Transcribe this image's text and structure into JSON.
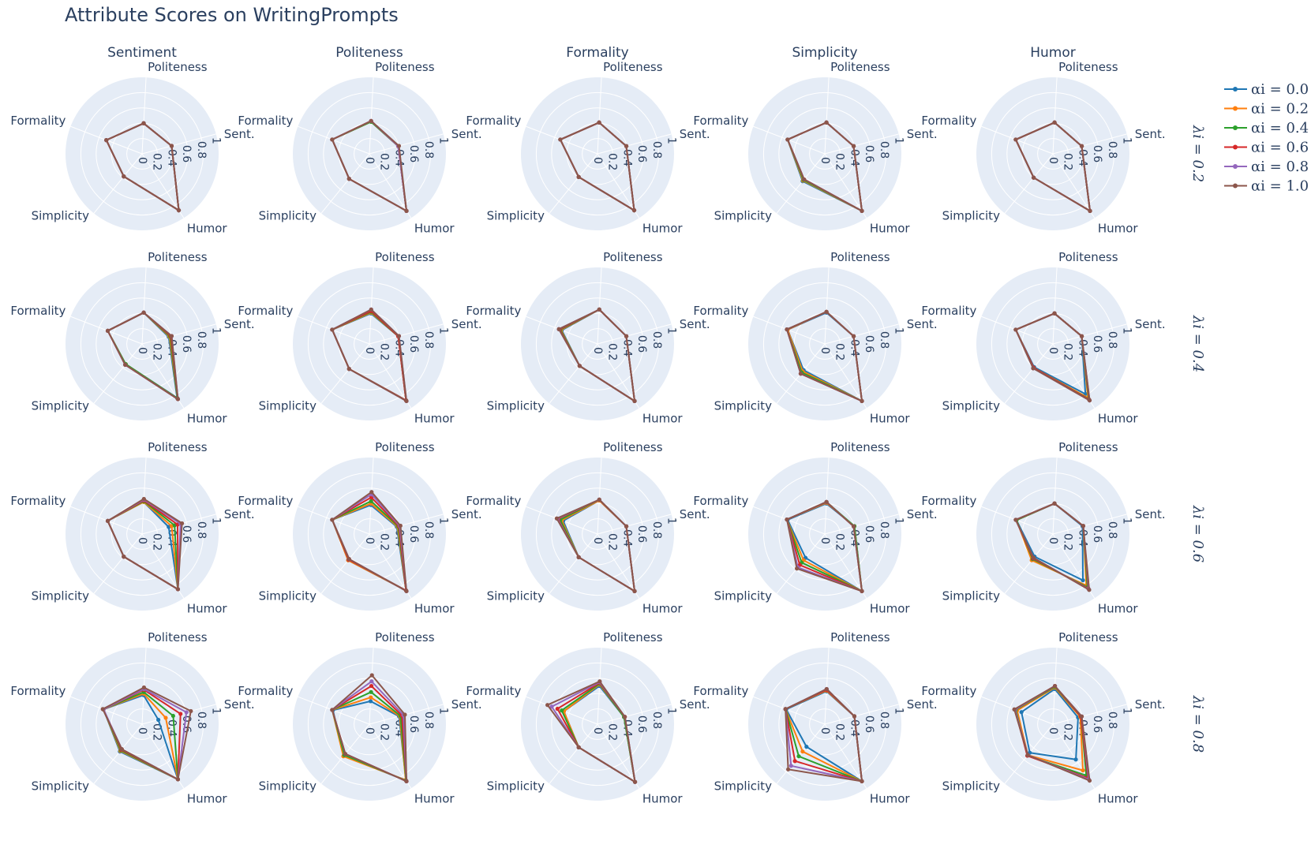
{
  "title": "Attribute Scores on WritingPrompts",
  "colors": {
    "background": "#ffffff",
    "polar_bg": "#e5ecf6",
    "grid": "#ffffff",
    "text": "#2a3f5f"
  },
  "chart_data": {
    "type": "radar",
    "axes": [
      "Sent.",
      "Politeness",
      "Formality",
      "Simplicity",
      "Humor"
    ],
    "radial_range": [
      0,
      1
    ],
    "radial_ticks": [
      "0",
      "0.2",
      "0.4",
      "0.6",
      "0.8",
      "1"
    ],
    "col_titles": [
      "Sentiment",
      "Politeness",
      "Formality",
      "Simplicity",
      "Humor"
    ],
    "row_labels": [
      "λi = 0.2",
      "λi = 0.4",
      "λi = 0.6",
      "λi = 0.8"
    ],
    "legend": [
      {
        "name": "αi = 0.0",
        "color": "#1f77b4"
      },
      {
        "name": "αi = 0.2",
        "color": "#ff7f0e"
      },
      {
        "name": "αi = 0.4",
        "color": "#2ca02c"
      },
      {
        "name": "αi = 0.6",
        "color": "#d62728"
      },
      {
        "name": "αi = 0.8",
        "color": "#9467bd"
      },
      {
        "name": "αi = 1.0",
        "color": "#8c564b"
      }
    ],
    "panels": [
      [
        {
          "series": [
            [
              0.4,
              0.4,
              0.5,
              0.38,
              0.88
            ],
            [
              0.4,
              0.4,
              0.5,
              0.38,
              0.88
            ],
            [
              0.4,
              0.4,
              0.5,
              0.38,
              0.88
            ],
            [
              0.4,
              0.4,
              0.5,
              0.38,
              0.88
            ],
            [
              0.4,
              0.4,
              0.5,
              0.38,
              0.88
            ],
            [
              0.4,
              0.4,
              0.5,
              0.38,
              0.88
            ]
          ]
        },
        {
          "series": [
            [
              0.39,
              0.42,
              0.52,
              0.42,
              0.89
            ],
            [
              0.39,
              0.42,
              0.52,
              0.42,
              0.89
            ],
            [
              0.39,
              0.42,
              0.52,
              0.42,
              0.89
            ],
            [
              0.39,
              0.43,
              0.52,
              0.42,
              0.89
            ],
            [
              0.39,
              0.43,
              0.52,
              0.42,
              0.89
            ],
            [
              0.4,
              0.43,
              0.52,
              0.42,
              0.89
            ]
          ]
        },
        {
          "series": [
            [
              0.39,
              0.41,
              0.52,
              0.39,
              0.88
            ],
            [
              0.39,
              0.41,
              0.52,
              0.39,
              0.88
            ],
            [
              0.39,
              0.41,
              0.52,
              0.39,
              0.88
            ],
            [
              0.39,
              0.41,
              0.52,
              0.39,
              0.88
            ],
            [
              0.39,
              0.41,
              0.52,
              0.39,
              0.88
            ],
            [
              0.39,
              0.41,
              0.52,
              0.39,
              0.88
            ]
          ]
        },
        {
          "series": [
            [
              0.39,
              0.41,
              0.52,
              0.46,
              0.89
            ],
            [
              0.39,
              0.41,
              0.52,
              0.45,
              0.89
            ],
            [
              0.39,
              0.41,
              0.52,
              0.44,
              0.89
            ],
            [
              0.39,
              0.41,
              0.52,
              0.43,
              0.89
            ],
            [
              0.39,
              0.41,
              0.52,
              0.43,
              0.89
            ],
            [
              0.39,
              0.41,
              0.52,
              0.43,
              0.89
            ]
          ]
        },
        {
          "series": [
            [
              0.39,
              0.41,
              0.52,
              0.4,
              0.89
            ],
            [
              0.39,
              0.41,
              0.52,
              0.4,
              0.89
            ],
            [
              0.39,
              0.41,
              0.52,
              0.4,
              0.89
            ],
            [
              0.39,
              0.41,
              0.52,
              0.4,
              0.89
            ],
            [
              0.39,
              0.41,
              0.52,
              0.4,
              0.89
            ],
            [
              0.39,
              0.41,
              0.52,
              0.4,
              0.89
            ]
          ]
        }
      ],
      [
        {
          "series": [
            [
              0.36,
              0.41,
              0.48,
              0.34,
              0.84
            ],
            [
              0.37,
              0.41,
              0.48,
              0.34,
              0.85
            ],
            [
              0.38,
              0.41,
              0.48,
              0.34,
              0.85
            ],
            [
              0.39,
              0.41,
              0.48,
              0.35,
              0.86
            ],
            [
              0.4,
              0.41,
              0.48,
              0.35,
              0.86
            ],
            [
              0.4,
              0.41,
              0.48,
              0.35,
              0.86
            ]
          ]
        },
        {
          "series": [
            [
              0.39,
              0.4,
              0.52,
              0.42,
              0.88
            ],
            [
              0.39,
              0.41,
              0.52,
              0.42,
              0.88
            ],
            [
              0.39,
              0.42,
              0.52,
              0.42,
              0.88
            ],
            [
              0.39,
              0.43,
              0.52,
              0.42,
              0.88
            ],
            [
              0.4,
              0.45,
              0.52,
              0.42,
              0.89
            ],
            [
              0.4,
              0.45,
              0.52,
              0.42,
              0.89
            ]
          ]
        },
        {
          "series": [
            [
              0.39,
              0.45,
              0.5,
              0.37,
              0.89
            ],
            [
              0.39,
              0.45,
              0.51,
              0.37,
              0.89
            ],
            [
              0.39,
              0.45,
              0.52,
              0.37,
              0.89
            ],
            [
              0.39,
              0.45,
              0.53,
              0.37,
              0.89
            ],
            [
              0.39,
              0.45,
              0.54,
              0.37,
              0.89
            ],
            [
              0.39,
              0.45,
              0.54,
              0.37,
              0.89
            ]
          ]
        },
        {
          "series": [
            [
              0.39,
              0.41,
              0.52,
              0.44,
              0.89
            ],
            [
              0.39,
              0.42,
              0.52,
              0.46,
              0.89
            ],
            [
              0.39,
              0.42,
              0.53,
              0.48,
              0.89
            ],
            [
              0.39,
              0.42,
              0.53,
              0.5,
              0.89
            ],
            [
              0.39,
              0.42,
              0.53,
              0.5,
              0.89
            ],
            [
              0.39,
              0.42,
              0.53,
              0.5,
              0.89
            ]
          ]
        },
        {
          "series": [
            [
              0.39,
              0.4,
              0.52,
              0.39,
              0.78
            ],
            [
              0.39,
              0.4,
              0.52,
              0.4,
              0.84
            ],
            [
              0.39,
              0.4,
              0.52,
              0.4,
              0.86
            ],
            [
              0.39,
              0.4,
              0.52,
              0.4,
              0.87
            ],
            [
              0.39,
              0.4,
              0.52,
              0.41,
              0.88
            ],
            [
              0.39,
              0.4,
              0.52,
              0.41,
              0.88
            ]
          ]
        }
      ],
      [
        {
          "series": [
            [
              0.36,
              0.42,
              0.48,
              0.38,
              0.86
            ],
            [
              0.4,
              0.42,
              0.48,
              0.38,
              0.86
            ],
            [
              0.44,
              0.43,
              0.48,
              0.38,
              0.86
            ],
            [
              0.48,
              0.44,
              0.48,
              0.38,
              0.86
            ],
            [
              0.52,
              0.45,
              0.48,
              0.38,
              0.86
            ],
            [
              0.54,
              0.46,
              0.48,
              0.38,
              0.86
            ]
          ]
        },
        {
          "series": [
            [
              0.37,
              0.38,
              0.52,
              0.44,
              0.88
            ],
            [
              0.38,
              0.4,
              0.52,
              0.44,
              0.88
            ],
            [
              0.39,
              0.43,
              0.52,
              0.43,
              0.88
            ],
            [
              0.4,
              0.48,
              0.52,
              0.43,
              0.88
            ],
            [
              0.41,
              0.52,
              0.52,
              0.42,
              0.89
            ],
            [
              0.42,
              0.55,
              0.52,
              0.42,
              0.89
            ]
          ]
        },
        {
          "series": [
            [
              0.39,
              0.44,
              0.48,
              0.39,
              0.89
            ],
            [
              0.39,
              0.44,
              0.5,
              0.39,
              0.89
            ],
            [
              0.39,
              0.45,
              0.52,
              0.39,
              0.89
            ],
            [
              0.39,
              0.45,
              0.55,
              0.39,
              0.89
            ],
            [
              0.39,
              0.45,
              0.56,
              0.39,
              0.89
            ],
            [
              0.39,
              0.45,
              0.57,
              0.39,
              0.89
            ]
          ]
        },
        {
          "series": [
            [
              0.4,
              0.4,
              0.52,
              0.4,
              0.89
            ],
            [
              0.4,
              0.41,
              0.53,
              0.44,
              0.89
            ],
            [
              0.4,
              0.42,
              0.53,
              0.48,
              0.89
            ],
            [
              0.39,
              0.42,
              0.53,
              0.52,
              0.89
            ],
            [
              0.39,
              0.42,
              0.53,
              0.56,
              0.89
            ],
            [
              0.39,
              0.42,
              0.53,
              0.58,
              0.89
            ]
          ]
        },
        {
          "series": [
            [
              0.4,
              0.4,
              0.51,
              0.38,
              0.72
            ],
            [
              0.41,
              0.4,
              0.51,
              0.44,
              0.8
            ],
            [
              0.41,
              0.4,
              0.51,
              0.42,
              0.83
            ],
            [
              0.41,
              0.4,
              0.52,
              0.41,
              0.85
            ],
            [
              0.41,
              0.4,
              0.52,
              0.4,
              0.86
            ],
            [
              0.41,
              0.4,
              0.52,
              0.4,
              0.87
            ]
          ]
        }
      ],
      [
        {
          "series": [
            [
              0.22,
              0.38,
              0.54,
              0.46,
              0.86
            ],
            [
              0.32,
              0.4,
              0.54,
              0.45,
              0.86
            ],
            [
              0.42,
              0.42,
              0.54,
              0.44,
              0.86
            ],
            [
              0.52,
              0.45,
              0.54,
              0.43,
              0.86
            ],
            [
              0.6,
              0.46,
              0.54,
              0.42,
              0.86
            ],
            [
              0.66,
              0.48,
              0.55,
              0.42,
              0.86
            ]
          ]
        },
        {
          "series": [
            [
              0.4,
              0.3,
              0.51,
              0.53,
              0.88
            ],
            [
              0.41,
              0.35,
              0.52,
              0.54,
              0.87
            ],
            [
              0.42,
              0.42,
              0.52,
              0.52,
              0.88
            ],
            [
              0.44,
              0.5,
              0.52,
              0.5,
              0.89
            ],
            [
              0.46,
              0.56,
              0.52,
              0.5,
              0.89
            ],
            [
              0.48,
              0.64,
              0.52,
              0.5,
              0.89
            ]
          ]
        },
        {
          "series": [
            [
              0.36,
              0.5,
              0.47,
              0.39,
              0.9
            ],
            [
              0.36,
              0.52,
              0.47,
              0.39,
              0.9
            ],
            [
              0.36,
              0.53,
              0.5,
              0.39,
              0.9
            ],
            [
              0.37,
              0.54,
              0.56,
              0.39,
              0.9
            ],
            [
              0.37,
              0.55,
              0.64,
              0.39,
              0.9
            ],
            [
              0.37,
              0.56,
              0.7,
              0.39,
              0.9
            ]
          ]
        },
        {
          "series": [
            [
              0.4,
              0.43,
              0.54,
              0.38,
              0.89
            ],
            [
              0.4,
              0.44,
              0.55,
              0.46,
              0.89
            ],
            [
              0.4,
              0.45,
              0.55,
              0.54,
              0.89
            ],
            [
              0.4,
              0.45,
              0.55,
              0.62,
              0.89
            ],
            [
              0.4,
              0.46,
              0.55,
              0.7,
              0.89
            ],
            [
              0.4,
              0.46,
              0.55,
              0.76,
              0.89
            ]
          ]
        },
        {
          "series": [
            [
              0.34,
              0.46,
              0.44,
              0.48,
              0.55
            ],
            [
              0.37,
              0.48,
              0.5,
              0.52,
              0.72
            ],
            [
              0.38,
              0.49,
              0.52,
              0.53,
              0.8
            ],
            [
              0.38,
              0.5,
              0.53,
              0.53,
              0.84
            ],
            [
              0.39,
              0.5,
              0.53,
              0.52,
              0.86
            ],
            [
              0.39,
              0.5,
              0.54,
              0.52,
              0.88
            ]
          ]
        }
      ]
    ]
  }
}
